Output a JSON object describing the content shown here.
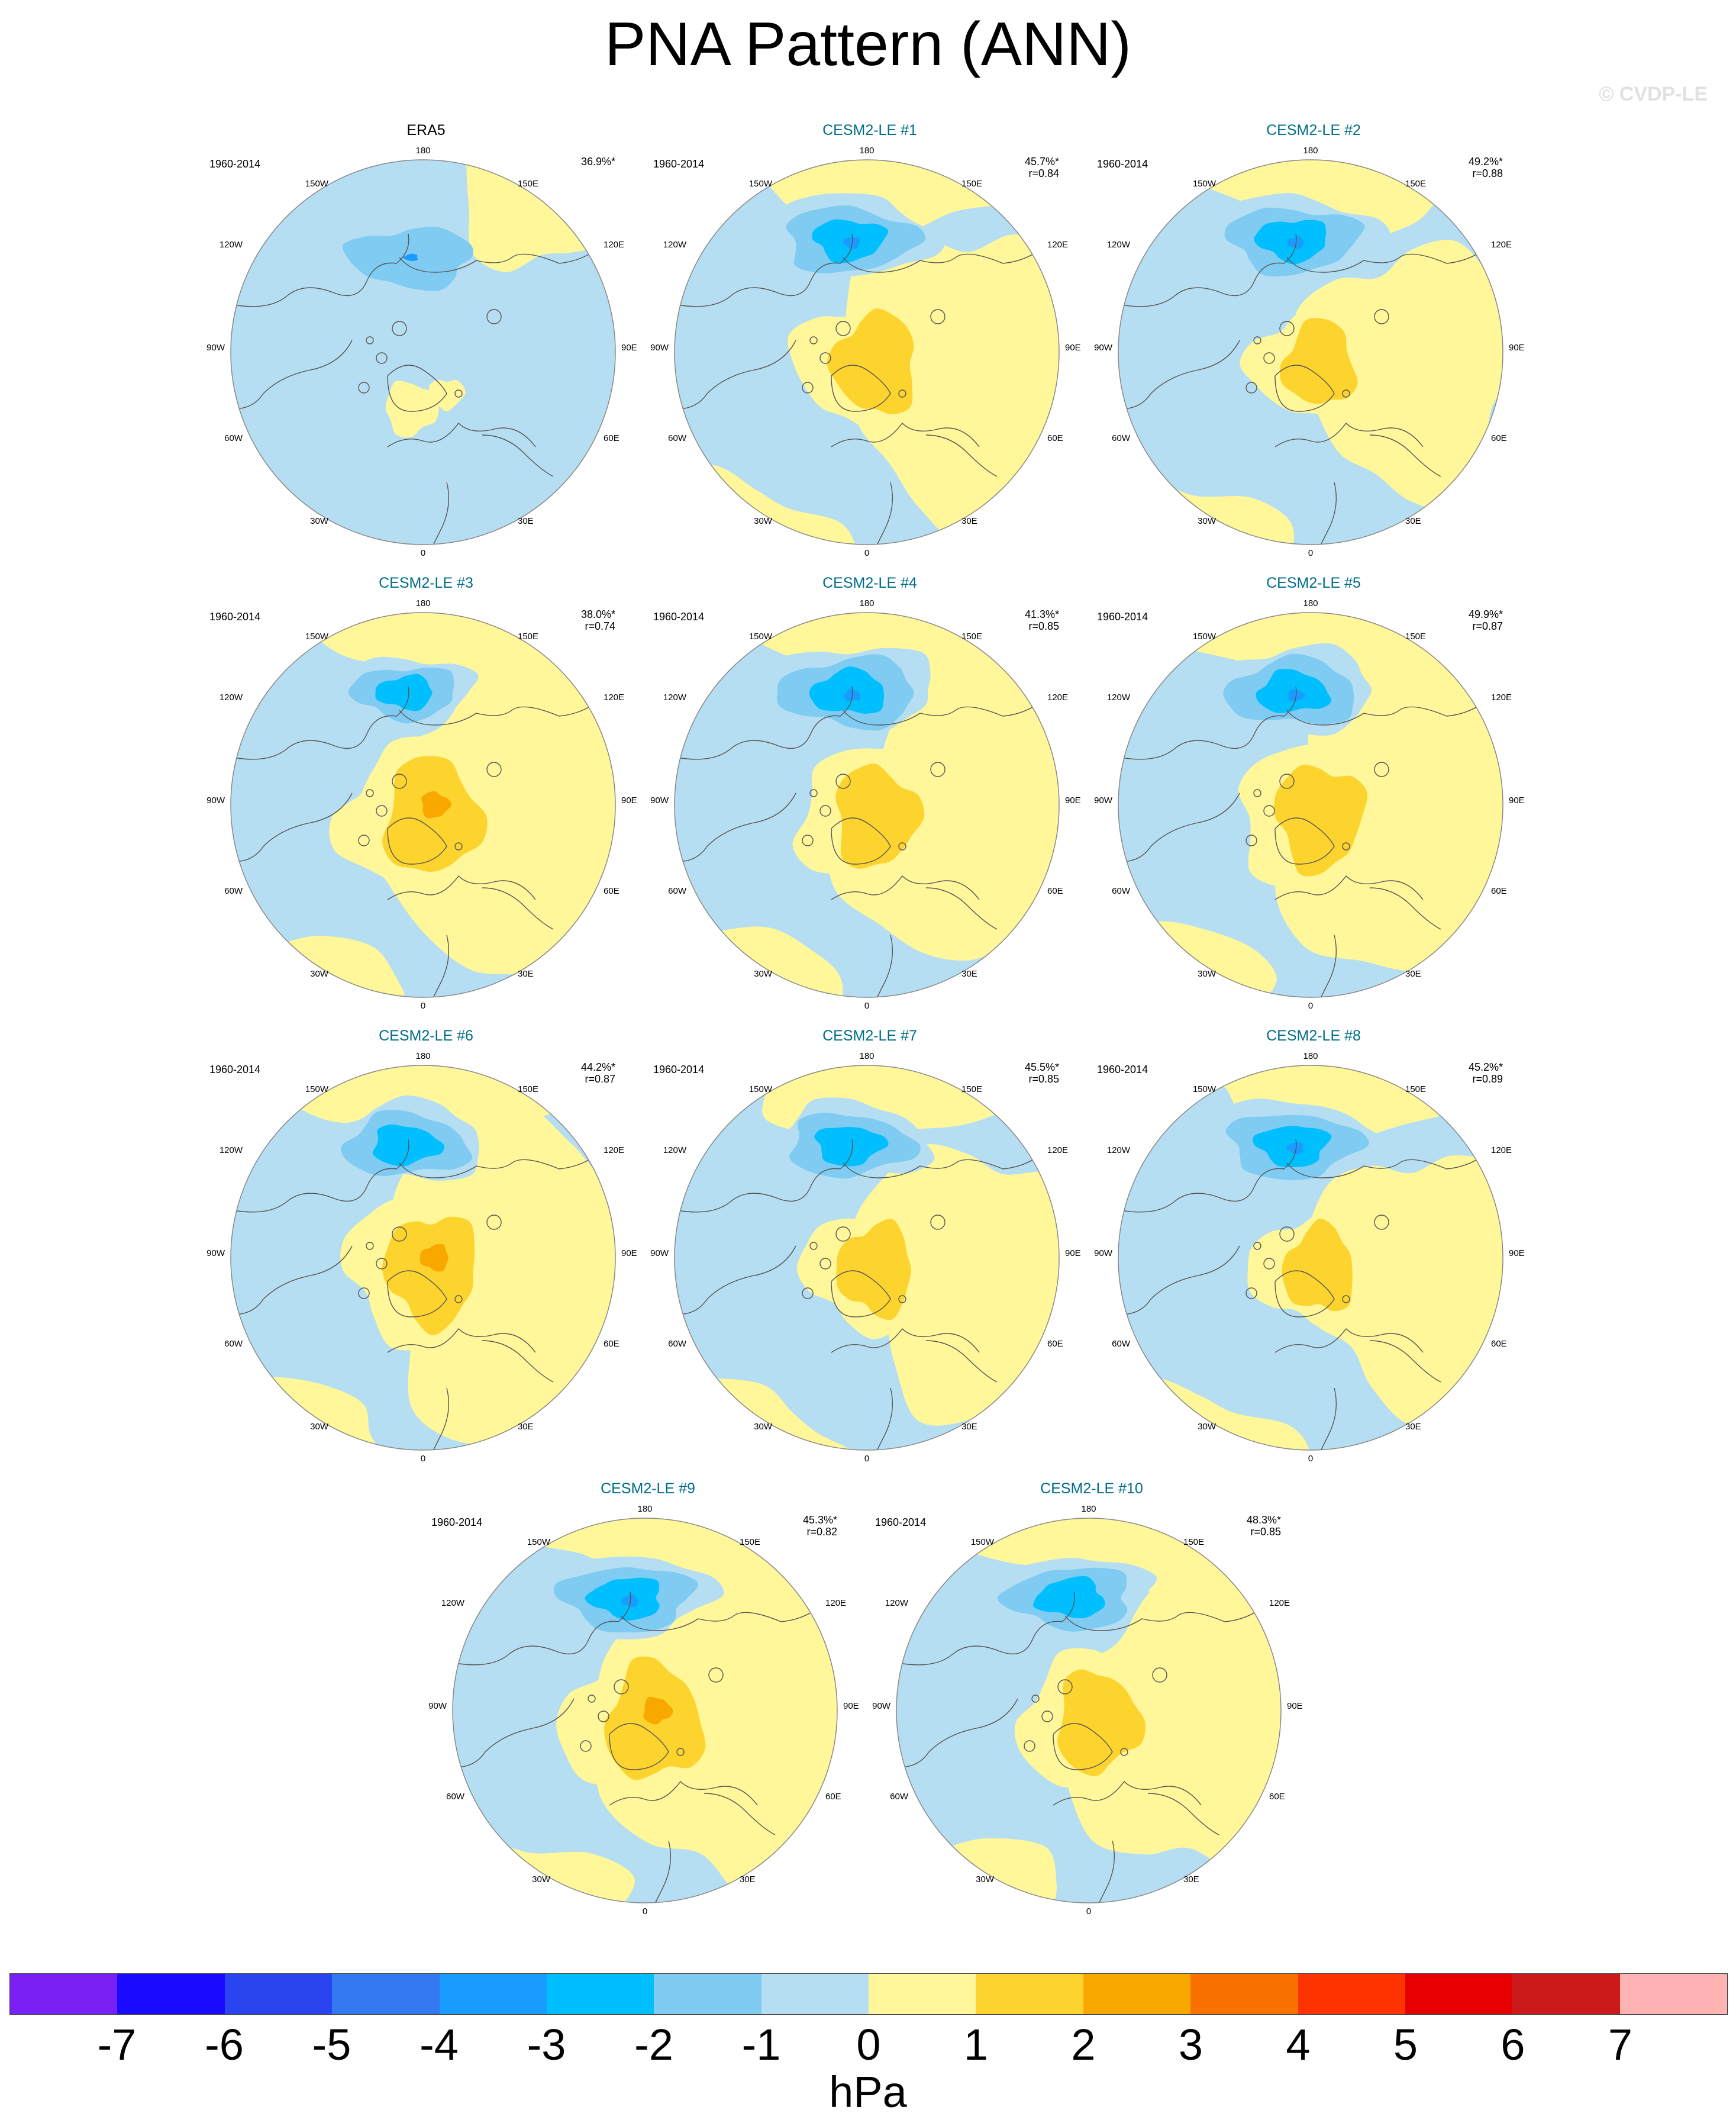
{
  "title": "PNA Pattern (ANN)",
  "copyright": "© CVDP-LE",
  "colors": {
    "neg3": "#1a9bff",
    "neg2": "#00bfff",
    "neg1": "#7fcbf2",
    "neg0": "#b5def2",
    "pos0": "#fff799",
    "pos1": "#fdd32e",
    "pos2": "#f9a800",
    "pos3": "#f97200",
    "coast": "#555555",
    "title_blue": "#006d8a"
  },
  "period": "1960-2014",
  "longitude_labels": [
    "180",
    "150E",
    "120E",
    "90E",
    "60E",
    "30E",
    "0",
    "30W",
    "60W",
    "90W",
    "120W",
    "150W"
  ],
  "panels": [
    {
      "title": "ERA5",
      "pct": "36.9%*",
      "r": "",
      "title_color": "black"
    },
    {
      "title": "CESM2-LE #1",
      "pct": "45.7%*",
      "r": "r=0.84",
      "title_color": "blue"
    },
    {
      "title": "CESM2-LE #2",
      "pct": "49.2%*",
      "r": "r=0.88",
      "title_color": "blue"
    },
    {
      "title": "CESM2-LE #3",
      "pct": "38.0%*",
      "r": "r=0.74",
      "title_color": "blue"
    },
    {
      "title": "CESM2-LE #4",
      "pct": "41.3%*",
      "r": "r=0.85",
      "title_color": "blue"
    },
    {
      "title": "CESM2-LE #5",
      "pct": "49.9%*",
      "r": "r=0.87",
      "title_color": "blue"
    },
    {
      "title": "CESM2-LE #6",
      "pct": "44.2%*",
      "r": "r=0.87",
      "title_color": "blue"
    },
    {
      "title": "CESM2-LE #7",
      "pct": "45.5%*",
      "r": "r=0.85",
      "title_color": "blue"
    },
    {
      "title": "CESM2-LE #8",
      "pct": "45.2%*",
      "r": "r=0.89",
      "title_color": "blue"
    },
    {
      "title": "CESM2-LE #9",
      "pct": "45.3%*",
      "r": "r=0.82",
      "title_color": "blue"
    },
    {
      "title": "CESM2-LE #10",
      "pct": "48.3%*",
      "r": "r=0.85",
      "title_color": "blue"
    }
  ],
  "colorbar": {
    "units": "hPa",
    "ticks": [
      "-7",
      "-6",
      "-5",
      "-4",
      "-3",
      "-2",
      "-1",
      "0",
      "1",
      "2",
      "3",
      "4",
      "5",
      "6",
      "7"
    ],
    "colors": [
      "#7b20f5",
      "#1a0aff",
      "#2a44f0",
      "#3478f2",
      "#1a9bff",
      "#00bfff",
      "#7fcbf2",
      "#b5def2",
      "#fff799",
      "#fdd32e",
      "#f9a800",
      "#f97200",
      "#ff3300",
      "#e60000",
      "#cc1a1a",
      "#ffb3b3"
    ]
  }
}
